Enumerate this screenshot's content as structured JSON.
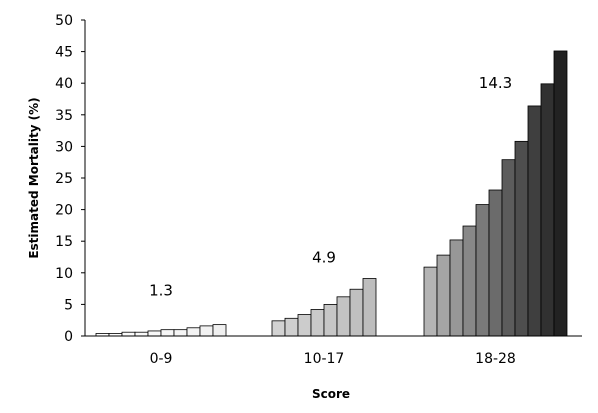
{
  "chart_data": {
    "type": "bar",
    "xlabel": "Score",
    "ylabel": "Estimated Mortality (%)",
    "ylim": [
      0,
      50
    ],
    "yticks": [
      0,
      5,
      10,
      15,
      20,
      25,
      30,
      35,
      40,
      45,
      50
    ],
    "grid": false,
    "groups": [
      {
        "label": "0-9",
        "annotation": "1.3",
        "scores": [
          0,
          1,
          2,
          3,
          4,
          5,
          6,
          7,
          8,
          9
        ],
        "values": [
          0.4,
          0.4,
          0.6,
          0.6,
          0.8,
          1.0,
          1.0,
          1.3,
          1.6,
          1.8
        ]
      },
      {
        "label": "10-17",
        "annotation": "4.9",
        "scores": [
          10,
          11,
          12,
          13,
          14,
          15,
          16,
          17
        ],
        "values": [
          2.4,
          2.8,
          3.4,
          4.2,
          5.0,
          6.2,
          7.4,
          9.1
        ]
      },
      {
        "label": "18-28",
        "annotation": "14.3",
        "scores": [
          18,
          19,
          20,
          21,
          22,
          23,
          24,
          25,
          26,
          27,
          28
        ],
        "values": [
          10.9,
          12.8,
          15.2,
          17.4,
          20.8,
          23.1,
          27.9,
          30.8,
          36.4,
          39.9,
          45.1
        ]
      }
    ]
  }
}
